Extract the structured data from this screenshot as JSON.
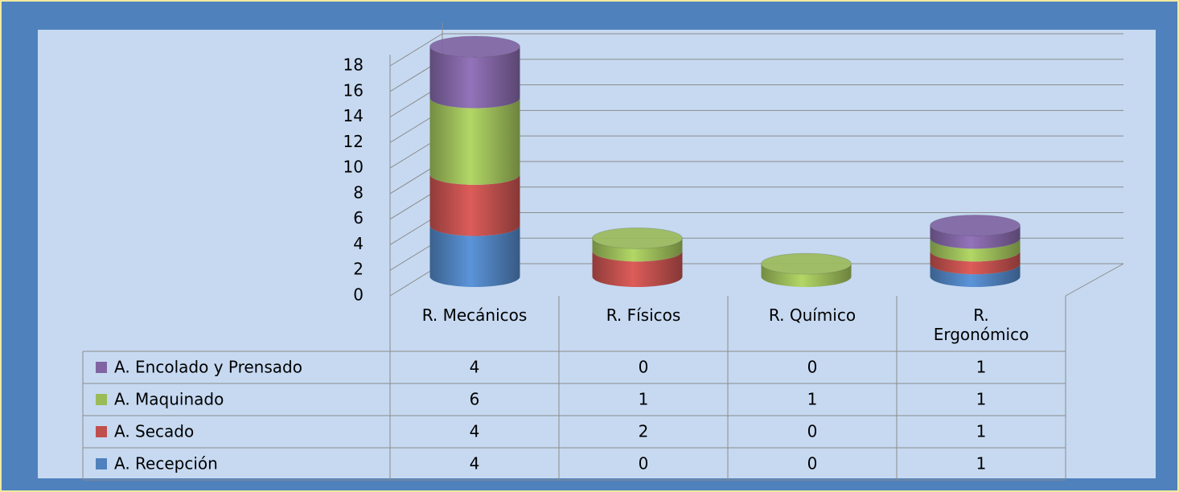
{
  "chart_data": {
    "type": "bar3d_stacked_cylinder",
    "categories": [
      "R. Mecánicos",
      "R. Físicos",
      "R. Químico",
      "R. Ergonómico"
    ],
    "series": [
      {
        "name": "A. Recepción",
        "color": "#4f81bd",
        "values": [
          4,
          0,
          0,
          1
        ]
      },
      {
        "name": "A. Secado",
        "color": "#c0504d",
        "values": [
          4,
          2,
          0,
          1
        ]
      },
      {
        "name": "A. Maquinado",
        "color": "#9bbb59",
        "values": [
          6,
          1,
          1,
          1
        ]
      },
      {
        "name": "A. Encolado y Prensado",
        "color": "#8064a2",
        "values": [
          4,
          0,
          0,
          1
        ]
      }
    ],
    "ylim": [
      0,
      18
    ],
    "yticks": [
      0,
      2,
      4,
      6,
      8,
      10,
      12,
      14,
      16,
      18
    ],
    "grid": true,
    "data_table": true
  }
}
